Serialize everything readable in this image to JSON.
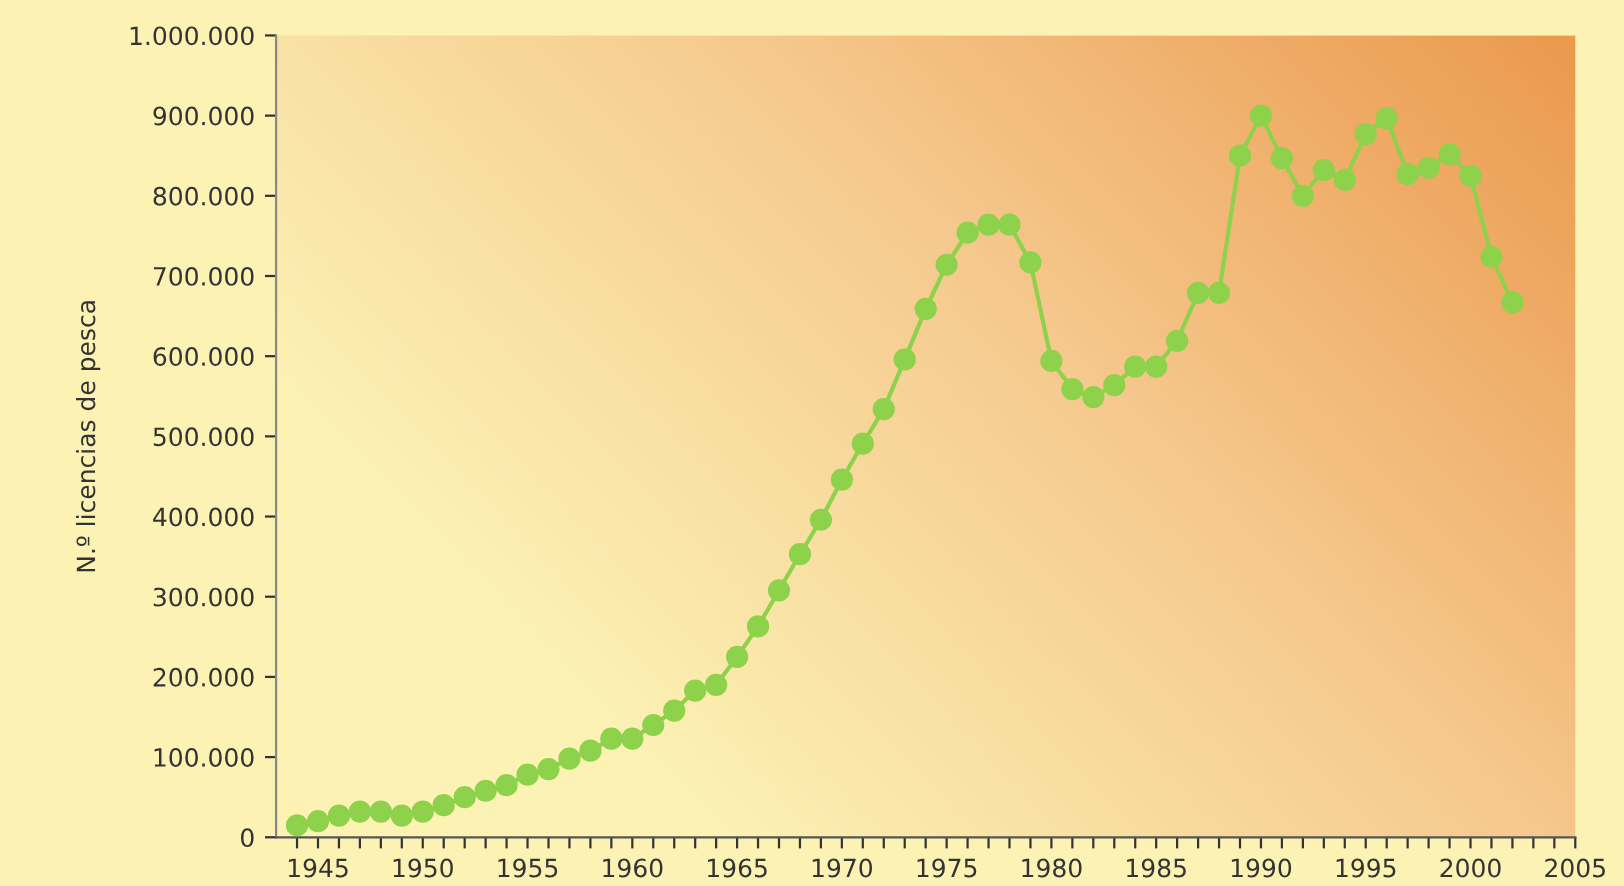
{
  "chart_data": {
    "type": "line",
    "ylabel": "N.º licencias de pesca",
    "x": [
      1944,
      1945,
      1946,
      1947,
      1948,
      1949,
      1950,
      1951,
      1952,
      1953,
      1954,
      1955,
      1956,
      1957,
      1958,
      1959,
      1960,
      1961,
      1962,
      1963,
      1964,
      1965,
      1966,
      1967,
      1968,
      1969,
      1970,
      1971,
      1972,
      1973,
      1974,
      1975,
      1976,
      1977,
      1978,
      1979,
      1980,
      1981,
      1982,
      1983,
      1984,
      1985,
      1986,
      1987,
      1988,
      1989,
      1990,
      1991,
      1992,
      1993,
      1994,
      1995,
      1996,
      1997,
      1998,
      1999,
      2000,
      2001,
      2002
    ],
    "series": [
      {
        "color": "#8ed24c",
        "values": [
          15000,
          20000,
          27000,
          32000,
          32000,
          27000,
          32000,
          40000,
          50000,
          58000,
          65000,
          78000,
          85000,
          98000,
          108000,
          123000,
          123000,
          140000,
          158000,
          183000,
          190000,
          225000,
          263000,
          308000,
          353000,
          396000,
          446000,
          491000,
          534000,
          596000,
          659000,
          714000,
          754000,
          764000,
          764000,
          717000,
          594000,
          559000,
          549000,
          564000,
          587000,
          587000,
          619000,
          679000,
          679000,
          850000,
          900000,
          847000,
          800000,
          832000,
          820000,
          877000,
          897000,
          827000,
          835000,
          852000,
          825000,
          724000,
          667000
        ]
      }
    ],
    "xlim": [
      1943,
      2005
    ],
    "xticks": [
      {
        "value": 1944,
        "label": null
      },
      1945,
      {
        "value": 1946,
        "label": null
      },
      {
        "value": 1947,
        "label": null
      },
      {
        "value": 1948,
        "label": null
      },
      {
        "value": 1949,
        "label": null
      },
      1950,
      {
        "value": 1951,
        "label": null
      },
      {
        "value": 1952,
        "label": null
      },
      {
        "value": 1953,
        "label": null
      },
      {
        "value": 1954,
        "label": null
      },
      1955,
      {
        "value": 1956,
        "label": null
      },
      {
        "value": 1957,
        "label": null
      },
      {
        "value": 1958,
        "label": null
      },
      {
        "value": 1959,
        "label": null
      },
      1960,
      {
        "value": 1961,
        "label": null
      },
      {
        "value": 1962,
        "label": null
      },
      {
        "value": 1963,
        "label": null
      },
      {
        "value": 1964,
        "label": null
      },
      1965,
      {
        "value": 1966,
        "label": null
      },
      {
        "value": 1967,
        "label": null
      },
      {
        "value": 1968,
        "label": null
      },
      {
        "value": 1969,
        "label": null
      },
      1970,
      {
        "value": 1971,
        "label": null
      },
      {
        "value": 1972,
        "label": null
      },
      {
        "value": 1973,
        "label": null
      },
      {
        "value": 1974,
        "label": null
      },
      1975,
      {
        "value": 1976,
        "label": null
      },
      {
        "value": 1977,
        "label": null
      },
      {
        "value": 1978,
        "label": null
      },
      {
        "value": 1979,
        "label": null
      },
      1980,
      {
        "value": 1981,
        "label": null
      },
      {
        "value": 1982,
        "label": null
      },
      {
        "value": 1983,
        "label": null
      },
      {
        "value": 1984,
        "label": null
      },
      1985,
      {
        "value": 1986,
        "label": null
      },
      {
        "value": 1987,
        "label": null
      },
      {
        "value": 1988,
        "label": null
      },
      {
        "value": 1989,
        "label": null
      },
      1990,
      {
        "value": 1991,
        "label": null
      },
      {
        "value": 1992,
        "label": null
      },
      {
        "value": 1993,
        "label": null
      },
      {
        "value": 1994,
        "label": null
      },
      1995,
      {
        "value": 1996,
        "label": null
      },
      {
        "value": 1997,
        "label": null
      },
      {
        "value": 1998,
        "label": null
      },
      {
        "value": 1999,
        "label": null
      },
      2000,
      {
        "value": 2001,
        "label": null
      },
      {
        "value": 2002,
        "label": null
      },
      {
        "value": 2003,
        "label": null
      },
      {
        "value": 2004,
        "label": null
      },
      2005
    ],
    "ylim": [
      0,
      1000000
    ],
    "yticks": [
      0,
      {
        "value": 100000,
        "label": "100.000"
      },
      {
        "value": 200000,
        "label": "200.000"
      },
      {
        "value": 300000,
        "label": "300.000"
      },
      {
        "value": 400000,
        "label": "400.000"
      },
      {
        "value": 500000,
        "label": "500.000"
      },
      {
        "value": 600000,
        "label": "600.000"
      },
      {
        "value": 700000,
        "label": "700.000"
      },
      {
        "value": 800000,
        "label": "800.000"
      },
      {
        "value": 900000,
        "label": "900.000"
      },
      {
        "value": 1000000,
        "label": "1.000.000"
      }
    ],
    "grid": false,
    "legend": false,
    "marker": "circle",
    "line_style": "solid"
  }
}
